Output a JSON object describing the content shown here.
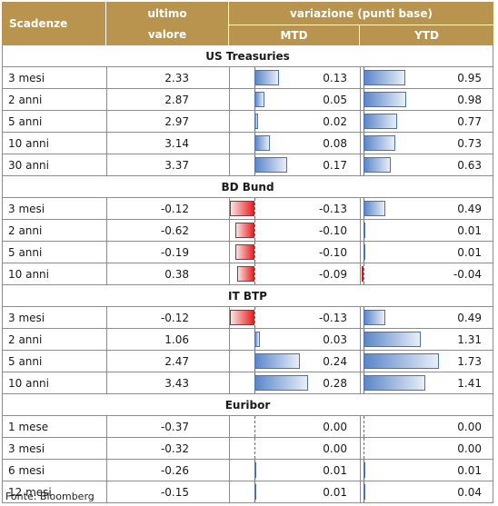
{
  "header": {
    "col_scadenze": "Scadenze",
    "col_ultimo_1": "ultimo",
    "col_ultimo_2": "valore",
    "col_variazione": "variazione (punti base)",
    "col_mtd": "MTD",
    "col_ytd": "YTD"
  },
  "sections": [
    {
      "title": "US Treasuries",
      "rows": [
        {
          "maturity": "3 mesi",
          "value": "2.33",
          "mtd": "0.13",
          "ytd": "0.95"
        },
        {
          "maturity": "2 anni",
          "value": "2.87",
          "mtd": "0.05",
          "ytd": "0.98"
        },
        {
          "maturity": "5 anni",
          "value": "2.97",
          "mtd": "0.02",
          "ytd": "0.77"
        },
        {
          "maturity": "10 anni",
          "value": "3.14",
          "mtd": "0.08",
          "ytd": "0.73"
        },
        {
          "maturity": "30 anni",
          "value": "3.37",
          "mtd": "0.17",
          "ytd": "0.63"
        }
      ]
    },
    {
      "title": "BD Bund",
      "rows": [
        {
          "maturity": "3 mesi",
          "value": "-0.12",
          "mtd": "-0.13",
          "ytd": "0.49"
        },
        {
          "maturity": "2 anni",
          "value": "-0.62",
          "mtd": "-0.10",
          "ytd": "0.01"
        },
        {
          "maturity": "5 anni",
          "value": "-0.19",
          "mtd": "-0.10",
          "ytd": "0.01"
        },
        {
          "maturity": "10 anni",
          "value": "0.38",
          "mtd": "-0.09",
          "ytd": "-0.04"
        }
      ]
    },
    {
      "title": "IT BTP",
      "rows": [
        {
          "maturity": "3 mesi",
          "value": "-0.12",
          "mtd": "-0.13",
          "ytd": "0.49"
        },
        {
          "maturity": "2 anni",
          "value": "1.06",
          "mtd": "0.03",
          "ytd": "1.31"
        },
        {
          "maturity": "5 anni",
          "value": "2.47",
          "mtd": "0.24",
          "ytd": "1.73"
        },
        {
          "maturity": "10 anni",
          "value": "3.43",
          "mtd": "0.28",
          "ytd": "1.41"
        }
      ]
    },
    {
      "title": "Euribor",
      "rows": [
        {
          "maturity": "1 mese",
          "value": "-0.37",
          "mtd": "0.00",
          "ytd": "0.00"
        },
        {
          "maturity": "3 mesi",
          "value": "-0.32",
          "mtd": "0.00",
          "ytd": "0.00"
        },
        {
          "maturity": "6 mesi",
          "value": "-0.26",
          "mtd": "0.01",
          "ytd": "0.01"
        },
        {
          "maturity": "12 mesi",
          "value": "-0.15",
          "mtd": "0.01",
          "ytd": "0.04"
        }
      ]
    }
  ],
  "footer": "Fonte: Bloomberg",
  "colors": {
    "header_bg": "#b8944f",
    "bar_positive": "#5b86c8",
    "bar_negative": "#e81f1f"
  }
}
